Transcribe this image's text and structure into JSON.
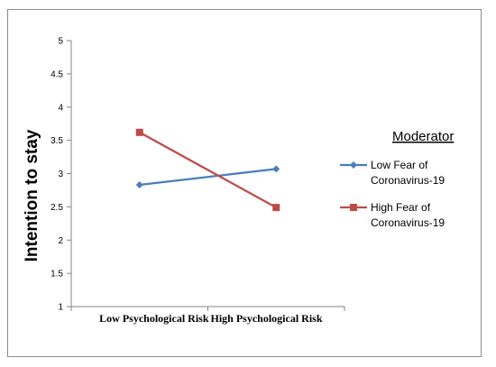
{
  "chart_data": {
    "type": "line",
    "categories": [
      "Low Psychological Risk",
      "High Psychological Risk"
    ],
    "series": [
      {
        "name": "Low Fear of Coronavirus-19",
        "legend_lines": [
          "Low Fear of",
          "Coronavirus-19"
        ],
        "values": [
          2.83,
          3.07
        ],
        "color": "#4a7ebb",
        "marker": "diamond"
      },
      {
        "name": "High Fear of Coronavirus-19",
        "legend_lines": [
          "High Fear of",
          "Coronavirus-19"
        ],
        "values": [
          3.62,
          2.49
        ],
        "color": "#be4b48",
        "marker": "square"
      }
    ],
    "ylabel": "Intention to stay",
    "ylim": [
      1,
      5
    ],
    "yticks": [
      "1",
      "1.5",
      "2",
      "2.5",
      "3",
      "3.5",
      "4",
      "4.5",
      "5"
    ],
    "legend_title": "Moderator",
    "legend_position": "right",
    "grid": false
  }
}
